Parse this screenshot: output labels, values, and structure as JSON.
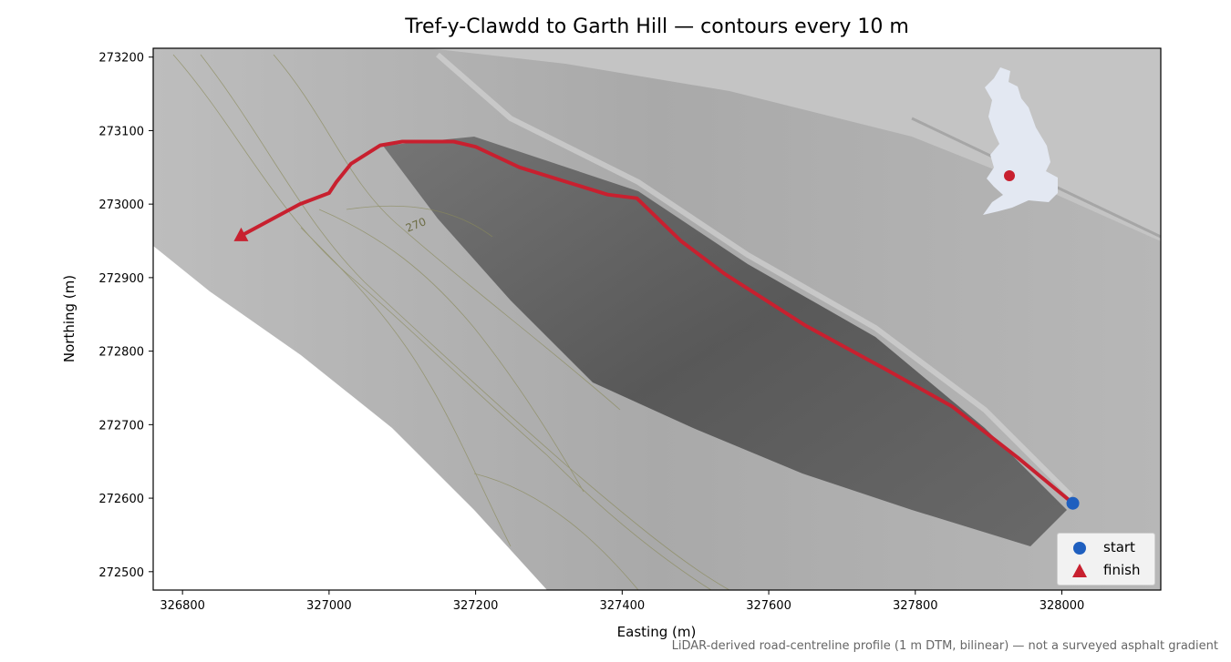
{
  "title": "Tref-y-Clawdd to Garth Hill — contours every 10 m",
  "footnote": "LiDAR-derived road-centreline profile (1 m DTM, bilinear) — not a surveyed asphalt gradient",
  "colors": {
    "route": "#c8202f",
    "start": "#1f5fbf",
    "finish": "#c8202f",
    "inset_land": "#e3e8f2"
  },
  "chart_data": {
    "type": "map",
    "xlabel": "Easting (m)",
    "ylabel": "Northing (m)",
    "xlim": [
      326760,
      328135
    ],
    "ylim": [
      272475,
      273212
    ],
    "x_ticks": [
      326800,
      327000,
      327200,
      327400,
      327600,
      327800,
      328000
    ],
    "y_ticks": [
      272500,
      272600,
      272700,
      272800,
      272900,
      273000,
      273100,
      273200
    ],
    "contour_label": "270",
    "route": [
      [
        328015,
        272593
      ],
      [
        327940,
        272655
      ],
      [
        327850,
        272725
      ],
      [
        327760,
        272775
      ],
      [
        327650,
        272835
      ],
      [
        327540,
        272905
      ],
      [
        327480,
        272950
      ],
      [
        327420,
        273008
      ],
      [
        327380,
        273013
      ],
      [
        327260,
        273050
      ],
      [
        327200,
        273078
      ],
      [
        327170,
        273085
      ],
      [
        327100,
        273085
      ],
      [
        327070,
        273080
      ],
      [
        327030,
        273055
      ],
      [
        327010,
        273030
      ],
      [
        327000,
        273015
      ],
      [
        326960,
        273000
      ],
      [
        326880,
        272957
      ]
    ],
    "start": {
      "label": "start",
      "x": 328015,
      "y": 272593
    },
    "finish": {
      "label": "finish",
      "x": 326880,
      "y": 272957
    },
    "legend": {
      "placement": "lower-right",
      "entries": [
        "start",
        "finish"
      ]
    },
    "inset": {
      "content": "Great Britain locator",
      "marker": "route location"
    }
  }
}
